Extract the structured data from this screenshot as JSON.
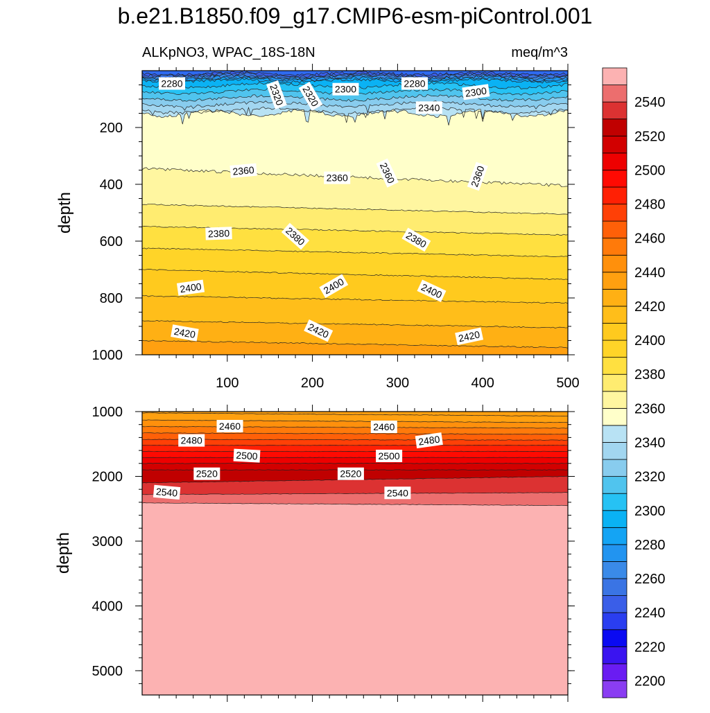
{
  "chart_data": {
    "type": "contour",
    "title": "b.e21.B1850.f09_g17.CMIP6-esm-piControl.001",
    "left_string": "ALKpNO3, WPAC_18S-18N",
    "right_string": "meq/m^3",
    "x_ticks": [
      "100",
      "200",
      "300",
      "400",
      "500"
    ],
    "xlim": [
      0,
      500
    ],
    "top_panel": {
      "ylabel": "depth",
      "ylim": [
        0,
        1000
      ],
      "y_ticks": [
        "200",
        "400",
        "600",
        "800",
        "1000"
      ],
      "contour_labels": [
        {
          "text": "2280",
          "x": 35,
          "y": 45,
          "angle": 0
        },
        {
          "text": "2320",
          "x": 158,
          "y": 85,
          "angle": 70
        },
        {
          "text": "2320",
          "x": 198,
          "y": 90,
          "angle": 60
        },
        {
          "text": "2300",
          "x": 239,
          "y": 65,
          "angle": 0
        },
        {
          "text": "2280",
          "x": 320,
          "y": 45,
          "angle": 0
        },
        {
          "text": "2300",
          "x": 392,
          "y": 75,
          "angle": -8
        },
        {
          "text": "2340",
          "x": 337,
          "y": 130,
          "angle": 0
        },
        {
          "text": "2360",
          "x": 119,
          "y": 352,
          "angle": -5
        },
        {
          "text": "2360",
          "x": 229,
          "y": 377,
          "angle": 0
        },
        {
          "text": "2360",
          "x": 288,
          "y": 360,
          "angle": 65
        },
        {
          "text": "2360",
          "x": 394,
          "y": 372,
          "angle": -70
        },
        {
          "text": "2380",
          "x": 90,
          "y": 573,
          "angle": -2
        },
        {
          "text": "2380",
          "x": 180,
          "y": 583,
          "angle": 42
        },
        {
          "text": "2380",
          "x": 322,
          "y": 595,
          "angle": 30
        },
        {
          "text": "2400",
          "x": 57,
          "y": 764,
          "angle": -8
        },
        {
          "text": "2400",
          "x": 225,
          "y": 758,
          "angle": -30
        },
        {
          "text": "2400",
          "x": 340,
          "y": 775,
          "angle": 25
        },
        {
          "text": "2420",
          "x": 50,
          "y": 923,
          "angle": 10
        },
        {
          "text": "2420",
          "x": 207,
          "y": 915,
          "angle": 25
        },
        {
          "text": "2420",
          "x": 384,
          "y": 935,
          "angle": -12
        }
      ]
    },
    "bottom_panel": {
      "ylabel": "depth",
      "ylim": [
        1000,
        5375
      ],
      "y_ticks": [
        "1000",
        "2000",
        "3000",
        "4000",
        "5000"
      ],
      "contour_labels": [
        {
          "text": "2460",
          "x": 103,
          "y": 1225,
          "angle": 0
        },
        {
          "text": "2460",
          "x": 284,
          "y": 1235,
          "angle": 0
        },
        {
          "text": "2480",
          "x": 58,
          "y": 1445,
          "angle": 0
        },
        {
          "text": "2480",
          "x": 337,
          "y": 1445,
          "angle": -8
        },
        {
          "text": "2500",
          "x": 123,
          "y": 1680,
          "angle": 3
        },
        {
          "text": "2500",
          "x": 290,
          "y": 1685,
          "angle": 0
        },
        {
          "text": "2520",
          "x": 76,
          "y": 1960,
          "angle": 0
        },
        {
          "text": "2520",
          "x": 245,
          "y": 1960,
          "angle": 0
        },
        {
          "text": "2540",
          "x": 29,
          "y": 2245,
          "angle": 5
        },
        {
          "text": "2540",
          "x": 300,
          "y": 2255,
          "angle": 0
        }
      ]
    },
    "colorbar": {
      "levels": [
        2200,
        2210,
        2220,
        2230,
        2240,
        2250,
        2260,
        2270,
        2280,
        2290,
        2300,
        2310,
        2320,
        2330,
        2340,
        2350,
        2360,
        2370,
        2380,
        2390,
        2400,
        2410,
        2420,
        2430,
        2440,
        2450,
        2460,
        2470,
        2480,
        2490,
        2500,
        2510,
        2520,
        2530,
        2540,
        2550
      ],
      "labels": [
        "2200",
        "2220",
        "2240",
        "2260",
        "2280",
        "2300",
        "2320",
        "2340",
        "2360",
        "2380",
        "2400",
        "2420",
        "2440",
        "2460",
        "2480",
        "2500",
        "2520",
        "2540"
      ],
      "colors": [
        "#8a3df2",
        "#6a1cf2",
        "#3a14f0",
        "#0a0af2",
        "#2a3ef0",
        "#3a5ee8",
        "#3a74e4",
        "#3a8ae8",
        "#2294f0",
        "#14a4f4",
        "#0ab2f4",
        "#26c2f4",
        "#50c4ee",
        "#88ccee",
        "#a2d6f0",
        "#b8e2f4",
        "#ffffca",
        "#fff6a0",
        "#ffec70",
        "#ffe040",
        "#ffd428",
        "#ffca1e",
        "#ffbe1a",
        "#ffb014",
        "#ffa010",
        "#ff900c",
        "#ff7a0a",
        "#ff6008",
        "#ff4006",
        "#ff2004",
        "#ff0a02",
        "#ee0000",
        "#d20000",
        "#c00000",
        "#dc3232",
        "#ec6e6e",
        "#fcb2b2"
      ]
    }
  }
}
